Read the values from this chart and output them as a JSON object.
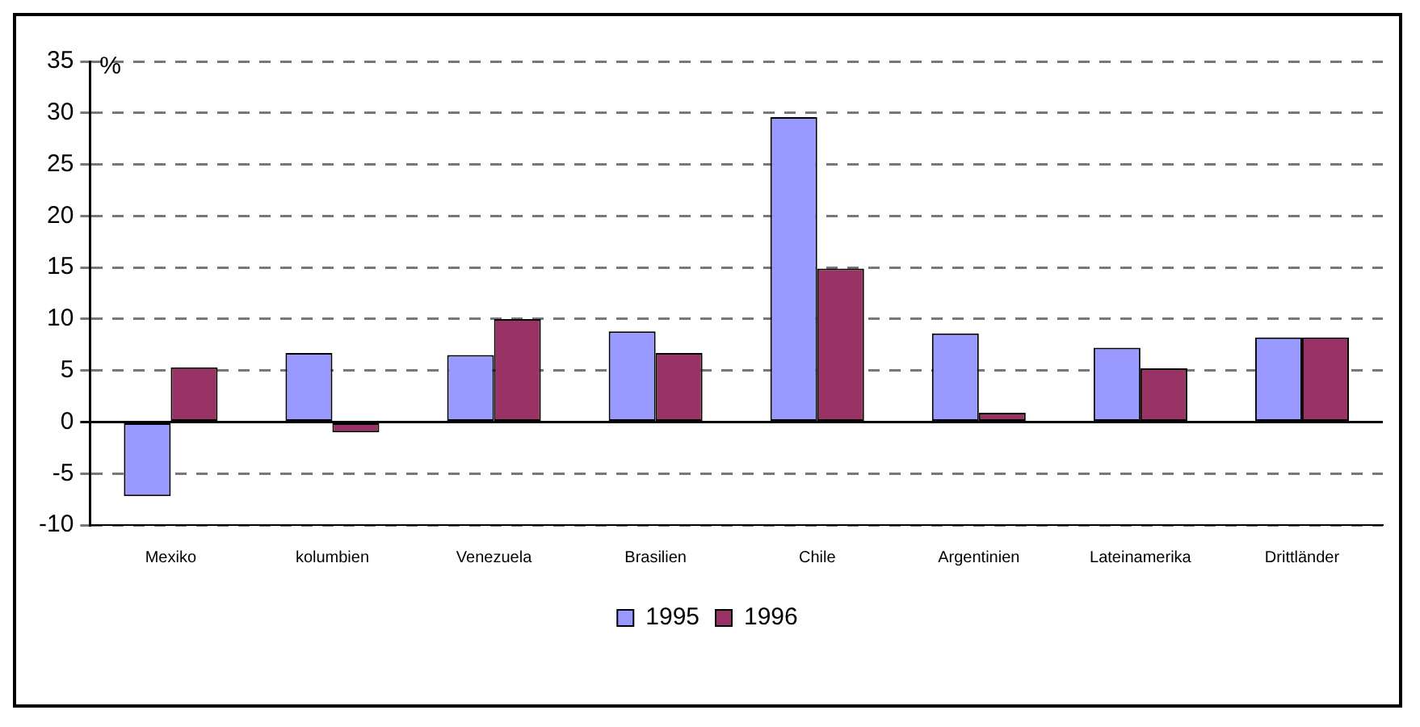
{
  "chart_data": {
    "type": "bar",
    "ylabel": "%",
    "categories": [
      "Mexiko",
      "kolumbien",
      "Venezuela",
      "Brasilien",
      "Chile",
      "Argentinien",
      "Lateinamerika",
      "Drittländer"
    ],
    "series": [
      {
        "name": "1995",
        "color": "#9999ff",
        "values": [
          -7.2,
          6.7,
          6.5,
          8.8,
          29.6,
          8.6,
          7.2,
          8.2
        ]
      },
      {
        "name": "1996",
        "color": "#993366",
        "values": [
          5.3,
          -1.0,
          10.0,
          6.7,
          14.9,
          0.9,
          5.2,
          8.2
        ]
      }
    ],
    "ylim": [
      -10,
      35
    ],
    "yticks": [
      -10,
      -5,
      0,
      5,
      10,
      15,
      20,
      25,
      30,
      35
    ],
    "grid": "y",
    "legend": "bottom"
  }
}
